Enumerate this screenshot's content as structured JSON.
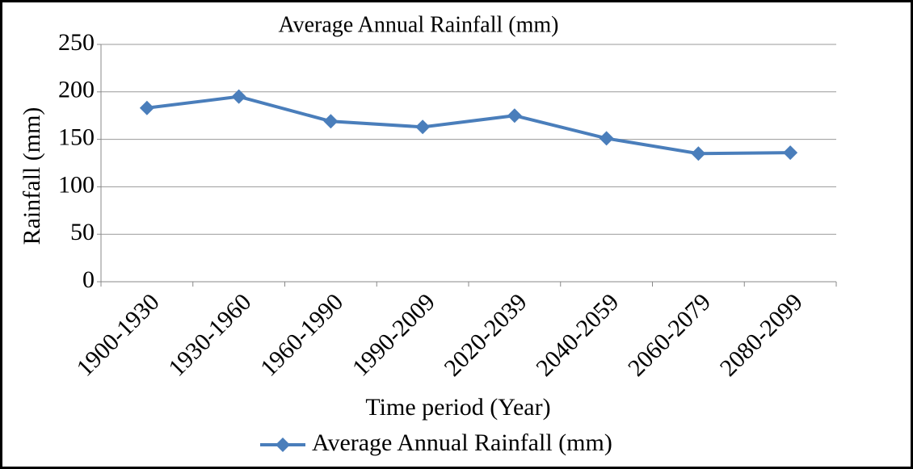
{
  "chart_data": {
    "type": "line",
    "title": "Average Annual Rainfall (mm)",
    "x_label": "Time period (Year)",
    "y_label": "Rainfall (mm)",
    "categories": [
      "1900-1930",
      "1930-1960",
      "1960-1990",
      "1990-2009",
      "2020-2039",
      "2040-2059",
      "2060-2079",
      "2080-2099"
    ],
    "series": [
      {
        "name": "Average Annual Rainfall (mm)",
        "color": "#4a7ebb",
        "values": [
          183,
          195,
          169,
          163,
          175,
          151,
          135,
          136
        ]
      }
    ],
    "ylim": [
      0,
      250
    ],
    "yticks": [
      0,
      50,
      100,
      150,
      200,
      250
    ],
    "grid": true,
    "legend": "bottom"
  }
}
